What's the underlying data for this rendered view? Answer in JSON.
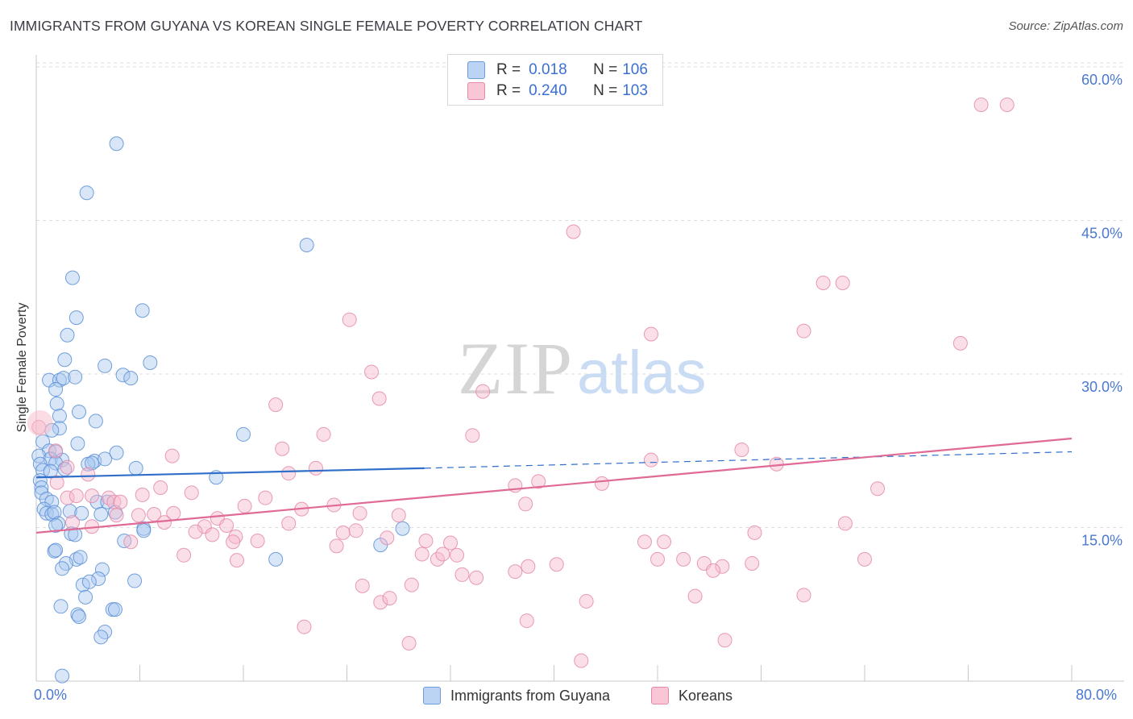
{
  "header": {
    "title": "IMMIGRANTS FROM GUYANA VS KOREAN SINGLE FEMALE POVERTY CORRELATION CHART",
    "source": "Source: ZipAtlas.com"
  },
  "watermark": {
    "zip": "ZIP",
    "atlas": "atlas"
  },
  "legend_top": {
    "rows": [
      {
        "r_label": "R = ",
        "r_value": "0.018",
        "n_label": "N = ",
        "n_value": "106"
      },
      {
        "r_label": "R = ",
        "r_value": "0.240",
        "n_label": "N = ",
        "n_value": "103"
      }
    ]
  },
  "colors": {
    "blue_fill": "#a9c8f0",
    "blue_stroke": "#5b8fd6",
    "blue_line": "#2f6fc9",
    "pink_fill": "#f7b9cc",
    "pink_stroke": "#e48aa8",
    "pink_line": "#e06a96",
    "grid": "#dcdcdc",
    "axis_label": "#4a78d0"
  },
  "chart_data": {
    "type": "scatter",
    "title": "IMMIGRANTS FROM GUYANA VS KOREAN SINGLE FEMALE POVERTY CORRELATION CHART",
    "xlabel": "",
    "ylabel": "Single Female Poverty",
    "xlim": [
      0,
      80
    ],
    "ylim": [
      0,
      61
    ],
    "x_tick_labels": [
      "0.0%",
      "80.0%"
    ],
    "y_tick_labels": [
      "15.0%",
      "30.0%",
      "45.0%",
      "60.0%"
    ],
    "y_ticks": [
      15,
      30,
      45,
      60
    ],
    "grid": true,
    "legend_position": "top-center",
    "series": [
      {
        "name": "Immigrants from Guyana",
        "r": 0.018,
        "n": 106,
        "trend": {
          "solid": [
            [
              0,
              19.9
            ],
            [
              30,
              20.8
            ]
          ],
          "dashed": [
            [
              30,
              20.8
            ],
            [
              80,
              22.4
            ]
          ]
        },
        "points": [
          [
            6.2,
            52.5
          ],
          [
            3.9,
            47.7
          ],
          [
            20.9,
            42.6
          ],
          [
            2.8,
            39.4
          ],
          [
            8.2,
            36.2
          ],
          [
            3.1,
            35.5
          ],
          [
            2.4,
            33.8
          ],
          [
            2.2,
            31.4
          ],
          [
            5.3,
            30.8
          ],
          [
            8.8,
            31.1
          ],
          [
            6.7,
            29.9
          ],
          [
            1.0,
            29.4
          ],
          [
            1.8,
            29.4
          ],
          [
            2.1,
            29.6
          ],
          [
            3.0,
            29.7
          ],
          [
            7.3,
            29.6
          ],
          [
            1.5,
            28.5
          ],
          [
            1.6,
            27.1
          ],
          [
            3.3,
            26.3
          ],
          [
            4.6,
            25.4
          ],
          [
            1.8,
            25.9
          ],
          [
            1.8,
            24.7
          ],
          [
            1.2,
            24.5
          ],
          [
            0.5,
            23.4
          ],
          [
            1.0,
            22.5
          ],
          [
            1.5,
            22.4
          ],
          [
            3.2,
            23.2
          ],
          [
            16.0,
            24.1
          ],
          [
            0.2,
            22.0
          ],
          [
            1.1,
            21.7
          ],
          [
            2.0,
            21.6
          ],
          [
            4.5,
            21.5
          ],
          [
            6.2,
            22.3
          ],
          [
            0.3,
            21.2
          ],
          [
            1.5,
            21.3
          ],
          [
            4.0,
            21.2
          ],
          [
            4.3,
            21.3
          ],
          [
            5.3,
            21.7
          ],
          [
            0.5,
            20.6
          ],
          [
            1.1,
            20.5
          ],
          [
            2.2,
            20.7
          ],
          [
            7.7,
            20.8
          ],
          [
            0.3,
            19.6
          ],
          [
            0.4,
            18.9
          ],
          [
            0.4,
            18.4
          ],
          [
            13.9,
            19.9
          ],
          [
            0.8,
            17.8
          ],
          [
            1.2,
            17.5
          ],
          [
            4.7,
            17.5
          ],
          [
            5.5,
            17.5
          ],
          [
            0.6,
            16.8
          ],
          [
            0.8,
            16.4
          ],
          [
            1.2,
            16.3
          ],
          [
            1.4,
            16.5
          ],
          [
            2.6,
            16.6
          ],
          [
            3.5,
            16.4
          ],
          [
            5.0,
            16.3
          ],
          [
            6.1,
            16.5
          ],
          [
            1.7,
            15.4
          ],
          [
            1.5,
            15.2
          ],
          [
            2.7,
            14.4
          ],
          [
            3.0,
            14.3
          ],
          [
            8.3,
            14.9
          ],
          [
            8.3,
            14.7
          ],
          [
            6.8,
            13.7
          ],
          [
            28.3,
            14.9
          ],
          [
            26.6,
            13.3
          ],
          [
            1.4,
            12.7
          ],
          [
            1.5,
            12.8
          ],
          [
            3.1,
            11.9
          ],
          [
            3.4,
            12.1
          ],
          [
            2.3,
            11.5
          ],
          [
            18.5,
            11.9
          ],
          [
            2.0,
            11.0
          ],
          [
            5.1,
            10.9
          ],
          [
            4.8,
            10.0
          ],
          [
            7.6,
            9.8
          ],
          [
            3.6,
            9.4
          ],
          [
            4.1,
            9.7
          ],
          [
            3.8,
            8.2
          ],
          [
            1.9,
            7.3
          ],
          [
            5.9,
            7.0
          ],
          [
            6.1,
            7.0
          ],
          [
            3.2,
            6.5
          ],
          [
            3.3,
            6.3
          ],
          [
            5.3,
            4.8
          ],
          [
            5.0,
            4.3
          ],
          [
            2.0,
            0.5
          ]
        ]
      },
      {
        "name": "Koreans",
        "r": 0.24,
        "n": 103,
        "trend": {
          "solid": [
            [
              0,
              14.5
            ],
            [
              80,
              23.7
            ]
          ]
        },
        "points": [
          [
            73.0,
            56.3
          ],
          [
            75.0,
            56.3
          ],
          [
            41.5,
            43.9
          ],
          [
            60.8,
            38.9
          ],
          [
            62.3,
            38.9
          ],
          [
            24.2,
            35.3
          ],
          [
            59.3,
            34.2
          ],
          [
            47.5,
            33.9
          ],
          [
            71.4,
            33.0
          ],
          [
            25.9,
            30.2
          ],
          [
            26.5,
            27.6
          ],
          [
            34.5,
            28.3
          ],
          [
            18.5,
            27.0
          ],
          [
            22.2,
            24.1
          ],
          [
            33.7,
            24.0
          ],
          [
            0.2,
            24.8
          ],
          [
            1.5,
            22.5
          ],
          [
            10.5,
            22.0
          ],
          [
            19.0,
            22.7
          ],
          [
            54.5,
            22.6
          ],
          [
            47.5,
            21.6
          ],
          [
            57.2,
            21.2
          ],
          [
            2.4,
            20.9
          ],
          [
            21.6,
            20.8
          ],
          [
            19.5,
            20.3
          ],
          [
            4.0,
            20.2
          ],
          [
            1.6,
            19.4
          ],
          [
            37.0,
            19.1
          ],
          [
            38.8,
            19.5
          ],
          [
            43.7,
            19.3
          ],
          [
            9.6,
            18.9
          ],
          [
            12.0,
            18.4
          ],
          [
            8.2,
            18.2
          ],
          [
            2.4,
            17.9
          ],
          [
            3.1,
            18.1
          ],
          [
            4.3,
            18.1
          ],
          [
            5.6,
            17.9
          ],
          [
            6.0,
            17.5
          ],
          [
            6.5,
            17.5
          ],
          [
            17.7,
            17.9
          ],
          [
            65.0,
            18.8
          ],
          [
            16.1,
            17.1
          ],
          [
            20.5,
            16.8
          ],
          [
            23.0,
            17.2
          ],
          [
            37.8,
            17.3
          ],
          [
            6.2,
            16.2
          ],
          [
            7.9,
            16.2
          ],
          [
            9.1,
            16.3
          ],
          [
            10.6,
            16.4
          ],
          [
            14.0,
            15.9
          ],
          [
            25.0,
            16.4
          ],
          [
            28.0,
            16.2
          ],
          [
            2.8,
            15.5
          ],
          [
            4.3,
            15.1
          ],
          [
            9.9,
            15.5
          ],
          [
            13.0,
            15.1
          ],
          [
            14.7,
            15.2
          ],
          [
            19.5,
            15.4
          ],
          [
            62.5,
            15.4
          ],
          [
            12.3,
            14.6
          ],
          [
            13.6,
            14.3
          ],
          [
            15.4,
            14.1
          ],
          [
            23.7,
            14.5
          ],
          [
            24.7,
            14.7
          ],
          [
            55.5,
            14.5
          ],
          [
            7.3,
            13.6
          ],
          [
            15.2,
            13.6
          ],
          [
            17.1,
            13.7
          ],
          [
            23.2,
            13.2
          ],
          [
            27.1,
            14.0
          ],
          [
            30.1,
            13.7
          ],
          [
            32.0,
            13.5
          ],
          [
            47.0,
            13.6
          ],
          [
            48.5,
            13.6
          ],
          [
            11.4,
            12.3
          ],
          [
            15.5,
            11.8
          ],
          [
            29.8,
            12.4
          ],
          [
            31.0,
            11.9
          ],
          [
            31.4,
            12.4
          ],
          [
            32.5,
            12.3
          ],
          [
            48.0,
            11.9
          ],
          [
            50.0,
            11.9
          ],
          [
            51.6,
            11.5
          ],
          [
            53.0,
            11.2
          ],
          [
            55.3,
            11.5
          ],
          [
            64.0,
            11.9
          ],
          [
            37.0,
            10.7
          ],
          [
            38.0,
            11.2
          ],
          [
            40.2,
            11.4
          ],
          [
            52.3,
            10.8
          ],
          [
            32.9,
            10.4
          ],
          [
            34.0,
            10.1
          ],
          [
            25.2,
            9.3
          ],
          [
            29.0,
            9.4
          ],
          [
            26.6,
            7.7
          ],
          [
            27.3,
            8.1
          ],
          [
            42.5,
            7.8
          ],
          [
            50.9,
            8.3
          ],
          [
            59.3,
            8.4
          ],
          [
            37.9,
            5.9
          ],
          [
            20.7,
            5.3
          ],
          [
            28.8,
            3.7
          ],
          [
            53.2,
            4.0
          ],
          [
            42.1,
            2.0
          ]
        ]
      }
    ]
  },
  "bottom_legend": {
    "items": [
      "Immigrants from Guyana",
      "Koreans"
    ]
  }
}
